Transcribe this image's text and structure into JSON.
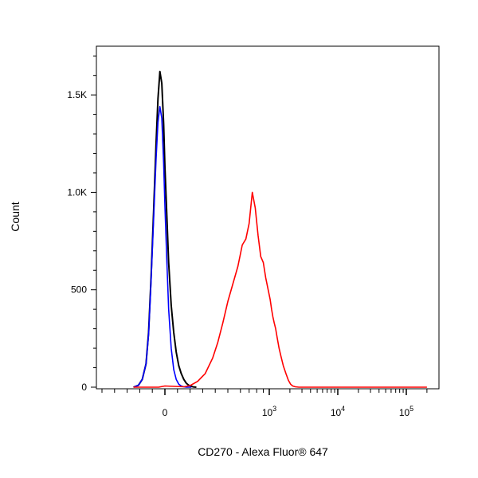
{
  "chart_data": {
    "type": "line",
    "title": "",
    "xlabel": "CD270 - Alexa Fluor® 647",
    "ylabel": "Count",
    "x_scale": "biexponential",
    "x_tick_labels": [
      "0",
      "10^3",
      "10^4",
      "10^5"
    ],
    "x_tick_values": [
      0,
      1000,
      10000,
      100000
    ],
    "y_tick_labels": [
      "0",
      "500",
      "1.0K",
      "1.5K"
    ],
    "y_tick_values": [
      0,
      500,
      1000,
      1500
    ],
    "ylim": [
      0,
      1750
    ],
    "grid": false,
    "legend": "none",
    "series": [
      {
        "color": "#000000",
        "x": [
          -250,
          -210,
          -180,
          -150,
          -130,
          -110,
          -90,
          -70,
          -55,
          -40,
          -25,
          -10,
          0,
          15,
          30,
          50,
          70,
          90,
          110,
          130,
          150,
          170,
          190,
          210,
          230,
          250
        ],
        "y": [
          0,
          10,
          40,
          120,
          280,
          560,
          900,
          1250,
          1480,
          1620,
          1560,
          1350,
          1130,
          880,
          640,
          420,
          280,
          180,
          110,
          70,
          40,
          20,
          10,
          4,
          1,
          0
        ]
      },
      {
        "color": "#0000ff",
        "x": [
          -250,
          -210,
          -180,
          -150,
          -130,
          -110,
          -90,
          -70,
          -55,
          -40,
          -25,
          -10,
          0,
          15,
          30,
          50,
          70,
          90,
          110,
          130,
          150,
          170,
          190,
          210
        ],
        "y": [
          0,
          10,
          40,
          120,
          270,
          540,
          860,
          1170,
          1360,
          1440,
          1380,
          1150,
          930,
          650,
          400,
          200,
          90,
          40,
          15,
          6,
          2,
          0,
          0,
          0
        ]
      },
      {
        "color": "#ff0000",
        "x": [
          -250,
          -50,
          0,
          150,
          200,
          260,
          320,
          380,
          420,
          460,
          500,
          540,
          580,
          620,
          660,
          700,
          740,
          780,
          820,
          860,
          900,
          940,
          980,
          1030,
          1080,
          1130,
          1180,
          1240,
          1310,
          1390,
          1480,
          1600,
          1750,
          1900,
          2050,
          2200,
          2400,
          2700,
          3500,
          10000,
          100000,
          200000
        ],
        "y": [
          0,
          0,
          6,
          2,
          8,
          30,
          70,
          150,
          230,
          330,
          440,
          530,
          620,
          730,
          760,
          840,
          1000,
          920,
          780,
          670,
          640,
          560,
          500,
          450,
          400,
          360,
          330,
          300,
          250,
          200,
          160,
          110,
          70,
          35,
          15,
          6,
          2,
          0,
          0,
          0,
          0,
          0
        ]
      }
    ]
  }
}
